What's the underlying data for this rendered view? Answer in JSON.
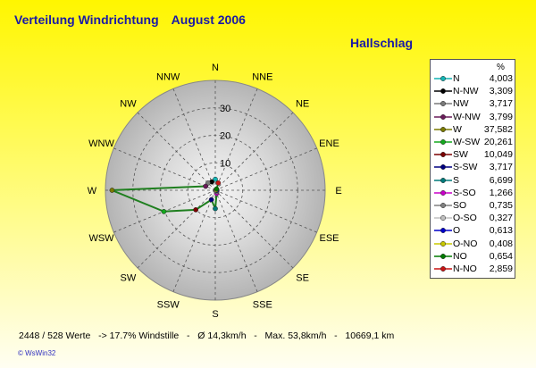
{
  "header": {
    "title": "Verteilung Windrichtung",
    "period": "August 2006",
    "station": "Hallschlag"
  },
  "chart_data": {
    "type": "radar",
    "directions": [
      "N",
      "NNE",
      "NE",
      "ENE",
      "E",
      "ESE",
      "SE",
      "SSE",
      "S",
      "SSW",
      "SW",
      "WSW",
      "W",
      "WNW",
      "NW",
      "NNW"
    ],
    "radial_ticks": [
      10,
      20,
      30
    ],
    "rmax": 40,
    "grid": true,
    "legend_position": "right",
    "legend_header": "%",
    "legend": [
      {
        "name": "N",
        "value": "4,003",
        "color": "#14b4b4"
      },
      {
        "name": "N-NW",
        "value": "3,309",
        "color": "#000000"
      },
      {
        "name": "NW",
        "value": "3,717",
        "color": "#7a7a7a"
      },
      {
        "name": "W-NW",
        "value": "3,799",
        "color": "#6a1b5a"
      },
      {
        "name": "W",
        "value": "37,582",
        "color": "#7a7a00"
      },
      {
        "name": "W-SW",
        "value": "20,261",
        "color": "#14a81e"
      },
      {
        "name": "SW",
        "value": "10,049",
        "color": "#7a0000"
      },
      {
        "name": "S-SW",
        "value": "3,717",
        "color": "#000080"
      },
      {
        "name": "S",
        "value": "6,699",
        "color": "#007a7a"
      },
      {
        "name": "S-SO",
        "value": "1,266",
        "color": "#c800c8"
      },
      {
        "name": "SO",
        "value": "0,735",
        "color": "#808080"
      },
      {
        "name": "O-SO",
        "value": "0,327",
        "color": "#c0c0c0"
      },
      {
        "name": "O",
        "value": "0,613",
        "color": "#0000c8"
      },
      {
        "name": "O-NO",
        "value": "0,408",
        "color": "#c8c800"
      },
      {
        "name": "NO",
        "value": "0,654",
        "color": "#007a00"
      },
      {
        "name": "N-NO",
        "value": "2,859",
        "color": "#c81414"
      }
    ],
    "series": [
      {
        "values": [
          4.003,
          2.859,
          0.654,
          0.408,
          0.613,
          0.327,
          0.735,
          1.266,
          6.699,
          3.717,
          10.049,
          20.261,
          37.582,
          3.799,
          3.717,
          3.309
        ]
      }
    ],
    "line_color": "#1f7f1f"
  },
  "footer": {
    "stats": "2448 / 528 Werte   -> 17.7% Windstille   -   Ø 14,3km/h   -   Max. 53,8km/h   -   10669,1 km"
  },
  "brand": "© WsWin32"
}
